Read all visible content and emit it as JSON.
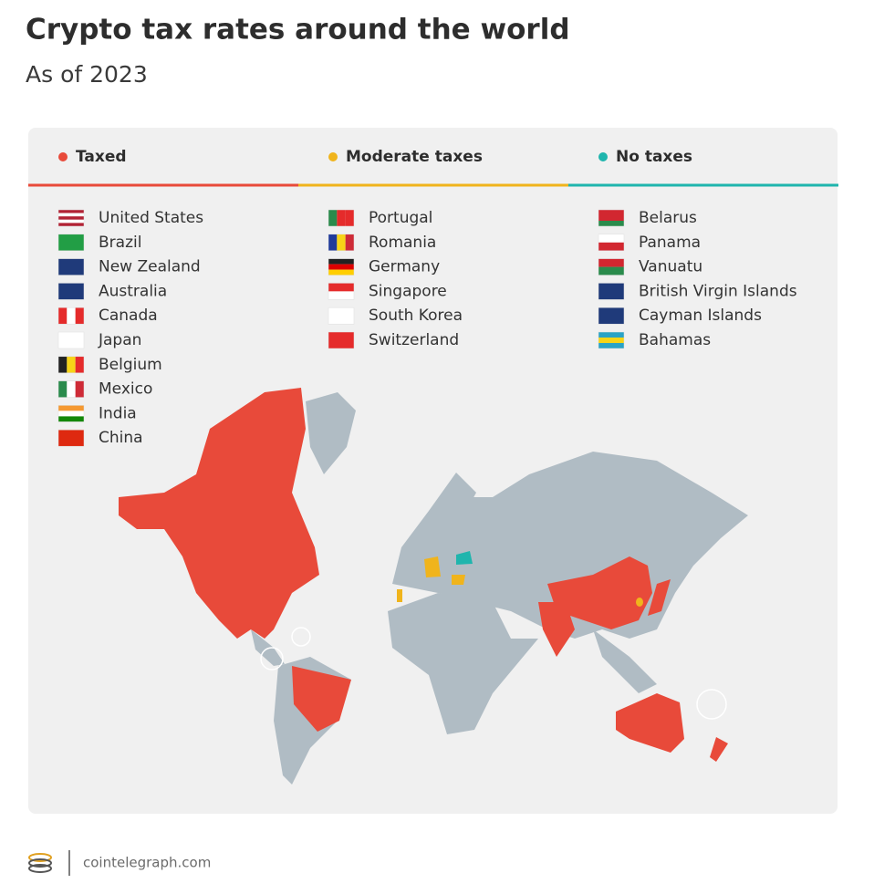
{
  "header": {
    "title": "Crypto tax rates around the world",
    "subtitle": "As of 2023"
  },
  "legend": [
    {
      "name": "Taxed",
      "color": "#e84a3a",
      "countries": [
        "United States",
        "Brazil",
        "New Zealand",
        "Australia",
        "Canada",
        "Japan",
        "Belgium",
        "Mexico",
        "India",
        "China"
      ]
    },
    {
      "name": "Moderate taxes",
      "color": "#f0b41c",
      "countries": [
        "Portugal",
        "Romania",
        "Germany",
        "Singapore",
        "South Korea",
        "Switzerland"
      ]
    },
    {
      "name": "No taxes",
      "color": "#1fb5ad",
      "countries": [
        "Belarus",
        "Panama",
        "Vanuatu",
        "British Virgin Islands",
        "Cayman Islands",
        "Bahamas"
      ]
    }
  ],
  "footer": {
    "source": "cointelegraph.com"
  }
}
